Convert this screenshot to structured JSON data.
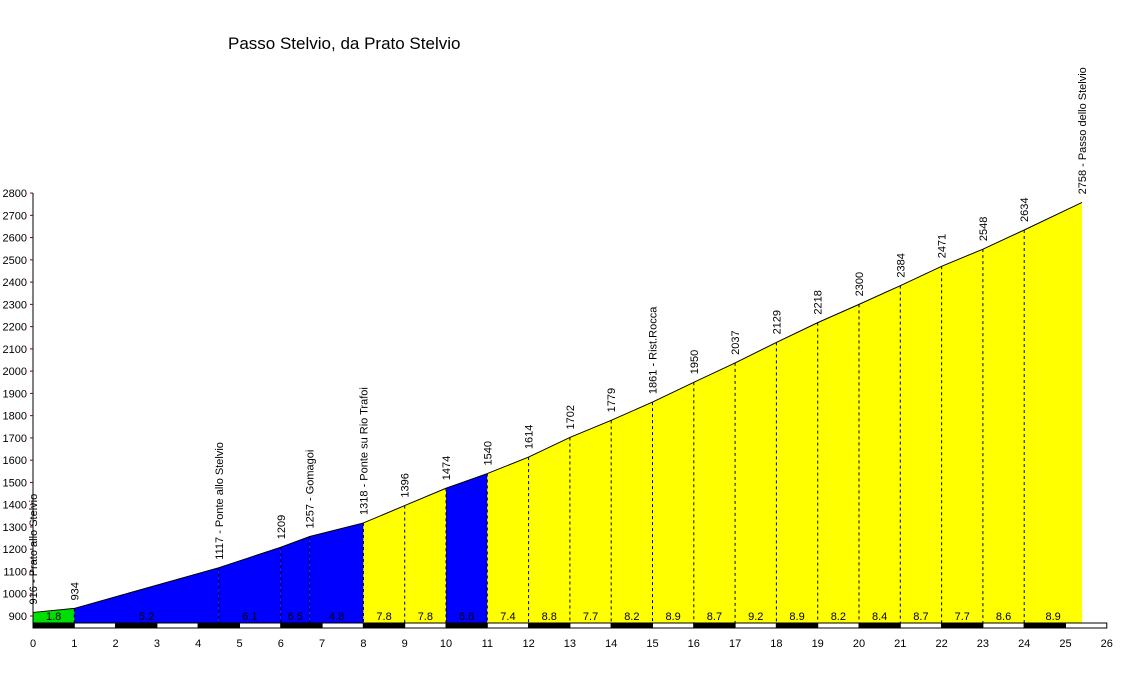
{
  "chart_data": {
    "type": "area",
    "title": "Passo Stelvio, da Prato Stelvio",
    "xlabel": "",
    "ylabel": "",
    "xlim": [
      0,
      26
    ],
    "ylim": [
      900,
      2800
    ],
    "x_ticks": [
      0,
      1,
      2,
      3,
      4,
      5,
      6,
      7,
      8,
      9,
      10,
      11,
      12,
      13,
      14,
      15,
      16,
      17,
      18,
      19,
      20,
      21,
      22,
      23,
      24,
      25,
      26
    ],
    "y_ticks": [
      900,
      1000,
      1100,
      1200,
      1300,
      1400,
      1500,
      1600,
      1700,
      1800,
      1900,
      2000,
      2100,
      2200,
      2300,
      2400,
      2500,
      2600,
      2700,
      2800
    ],
    "points": [
      {
        "km": 0,
        "elev": 916,
        "label": "916 - Prato allo Stelvio"
      },
      {
        "km": 1,
        "elev": 934,
        "label": "934"
      },
      {
        "km": 4.5,
        "elev": 1117,
        "label": "1117 - Ponte allo Stelvio"
      },
      {
        "km": 6,
        "elev": 1209,
        "label": "1209"
      },
      {
        "km": 6.7,
        "elev": 1257,
        "label": "1257 - Gomagoi"
      },
      {
        "km": 8,
        "elev": 1318,
        "label": "1318 - Ponte su Rio Trafoi"
      },
      {
        "km": 9,
        "elev": 1396,
        "label": "1396"
      },
      {
        "km": 10,
        "elev": 1474,
        "label": "1474"
      },
      {
        "km": 11,
        "elev": 1540,
        "label": "1540"
      },
      {
        "km": 12,
        "elev": 1614,
        "label": "1614"
      },
      {
        "km": 13,
        "elev": 1702,
        "label": "1702"
      },
      {
        "km": 14,
        "elev": 1779,
        "label": "1779"
      },
      {
        "km": 15,
        "elev": 1861,
        "label": "1861 - Rist.Rocca"
      },
      {
        "km": 16,
        "elev": 1950,
        "label": "1950"
      },
      {
        "km": 17,
        "elev": 2037,
        "label": "2037"
      },
      {
        "km": 18,
        "elev": 2129,
        "label": "2129"
      },
      {
        "km": 19,
        "elev": 2218,
        "label": "2218"
      },
      {
        "km": 20,
        "elev": 2300,
        "label": "2300"
      },
      {
        "km": 21,
        "elev": 2384,
        "label": "2384"
      },
      {
        "km": 22,
        "elev": 2471,
        "label": "2471"
      },
      {
        "km": 23,
        "elev": 2548,
        "label": "2548"
      },
      {
        "km": 24,
        "elev": 2634,
        "label": "2634"
      },
      {
        "km": 25.4,
        "elev": 2758,
        "label": "2758 - Passo dello Stelvio"
      }
    ],
    "segments": [
      {
        "gradient": "1.8",
        "color": "#00e000"
      },
      {
        "gradient": "5.2",
        "color": "#0000ff"
      },
      {
        "gradient": "6.1",
        "color": "#0000ff"
      },
      {
        "gradient": "6.5",
        "color": "#0000ff"
      },
      {
        "gradient": "4.8",
        "color": "#0000ff"
      },
      {
        "gradient": "7.8",
        "color": "#ffff00"
      },
      {
        "gradient": "7.8",
        "color": "#ffff00"
      },
      {
        "gradient": "6.6",
        "color": "#0000ff"
      },
      {
        "gradient": "7.4",
        "color": "#ffff00"
      },
      {
        "gradient": "8.8",
        "color": "#ffff00"
      },
      {
        "gradient": "7.7",
        "color": "#ffff00"
      },
      {
        "gradient": "8.2",
        "color": "#ffff00"
      },
      {
        "gradient": "8.9",
        "color": "#ffff00"
      },
      {
        "gradient": "8.7",
        "color": "#ffff00"
      },
      {
        "gradient": "9.2",
        "color": "#ffff00"
      },
      {
        "gradient": "8.9",
        "color": "#ffff00"
      },
      {
        "gradient": "8.2",
        "color": "#ffff00"
      },
      {
        "gradient": "8.4",
        "color": "#ffff00"
      },
      {
        "gradient": "8.7",
        "color": "#ffff00"
      },
      {
        "gradient": "7.7",
        "color": "#ffff00"
      },
      {
        "gradient": "8.6",
        "color": "#ffff00"
      },
      {
        "gradient": "8.9",
        "color": "#ffff00"
      }
    ]
  }
}
